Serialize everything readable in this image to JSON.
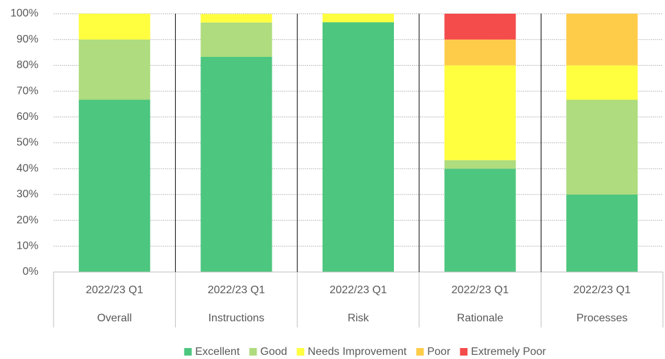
{
  "chart_data": {
    "type": "stacked_bar",
    "categories": [
      "2022/23 Q1",
      "2022/23 Q1",
      "2022/23 Q1",
      "2022/23 Q1",
      "2022/23 Q1"
    ],
    "groups": [
      "Overall",
      "Instructions",
      "Risk",
      "Rationale",
      "Processes"
    ],
    "series": [
      {
        "name": "Excellent",
        "color": "#4dc67f",
        "values": [
          66.7,
          83.3,
          96.7,
          40,
          30
        ]
      },
      {
        "name": "Good",
        "color": "#aedc7e",
        "values": [
          23.3,
          13.3,
          0,
          3.3,
          36.7
        ]
      },
      {
        "name": "Needs Improvement",
        "color": "#ffff40",
        "values": [
          10,
          3.3,
          3.3,
          36.7,
          13.3
        ]
      },
      {
        "name": "Poor",
        "color": "#ffcc4a",
        "values": [
          0,
          0,
          0,
          10,
          20
        ]
      },
      {
        "name": "Extremely Poor",
        "color": "#f44b4b",
        "values": [
          0,
          0,
          0,
          10,
          0
        ]
      }
    ],
    "ylim": [
      0,
      100
    ],
    "yticks": [
      {
        "value": 0,
        "label": "0%"
      },
      {
        "value": 10,
        "label": "10%"
      },
      {
        "value": 20,
        "label": "20%"
      },
      {
        "value": 30,
        "label": "30%"
      },
      {
        "value": 40,
        "label": "40%"
      },
      {
        "value": 50,
        "label": "50%"
      },
      {
        "value": 60,
        "label": "60%"
      },
      {
        "value": 70,
        "label": "70%"
      },
      {
        "value": 80,
        "label": "80%"
      },
      {
        "value": 90,
        "label": "90%"
      },
      {
        "value": 100,
        "label": "100%"
      }
    ],
    "grid": true,
    "legend": "bottom"
  }
}
